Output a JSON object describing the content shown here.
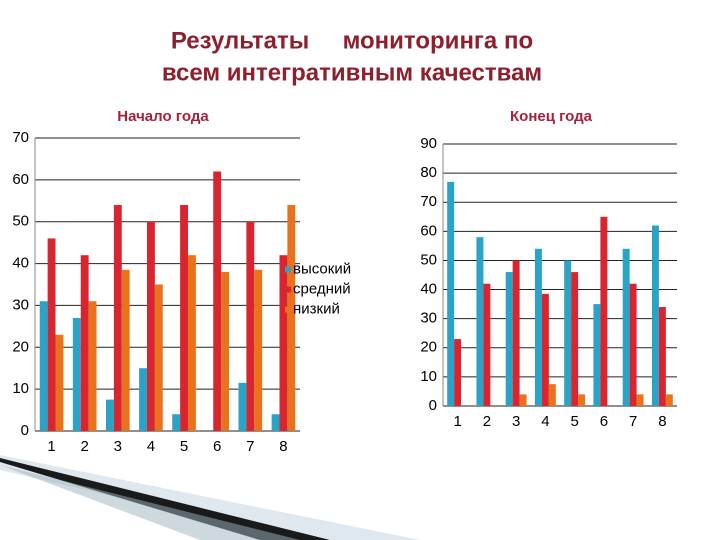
{
  "title": [
    "Результаты     мониторинга по",
    "всем интегративным качествам"
  ],
  "chart_data": [
    {
      "type": "bar",
      "subtitle": "Начало года",
      "categories": [
        "1",
        "2",
        "3",
        "4",
        "5",
        "6",
        "7",
        "8"
      ],
      "series": [
        {
          "name": "высокий",
          "color": "#2aa3c6",
          "values": [
            31,
            27,
            7.5,
            15,
            4,
            0,
            11.5,
            4
          ]
        },
        {
          "name": "средний",
          "color": "#d9252f",
          "values": [
            46,
            42,
            54,
            50,
            54,
            62,
            50,
            42
          ]
        },
        {
          "name": "низкий",
          "color": "#e8731c",
          "values": [
            23,
            31,
            38.5,
            35,
            42,
            38,
            38.5,
            54
          ]
        }
      ],
      "ylim": [
        0,
        70
      ],
      "yticks": [
        0,
        10,
        20,
        30,
        40,
        50,
        60,
        70
      ],
      "grid": true,
      "legend": "right"
    },
    {
      "type": "bar",
      "subtitle": "Конец года",
      "categories": [
        "1",
        "2",
        "3",
        "4",
        "5",
        "6",
        "7",
        "8"
      ],
      "series": [
        {
          "color": "#2aa3c6",
          "values": [
            77,
            58,
            46,
            54,
            50,
            35,
            54,
            62
          ]
        },
        {
          "color": "#d9252f",
          "values": [
            23,
            42,
            50,
            38.5,
            46,
            65,
            42,
            34
          ]
        },
        {
          "color": "#e8731c",
          "values": [
            0,
            0,
            4,
            7.5,
            4,
            0,
            4,
            4
          ]
        }
      ],
      "ylim": [
        0,
        90
      ],
      "yticks": [
        0,
        10,
        20,
        30,
        40,
        50,
        60,
        70,
        80,
        90
      ],
      "grid": true
    }
  ]
}
